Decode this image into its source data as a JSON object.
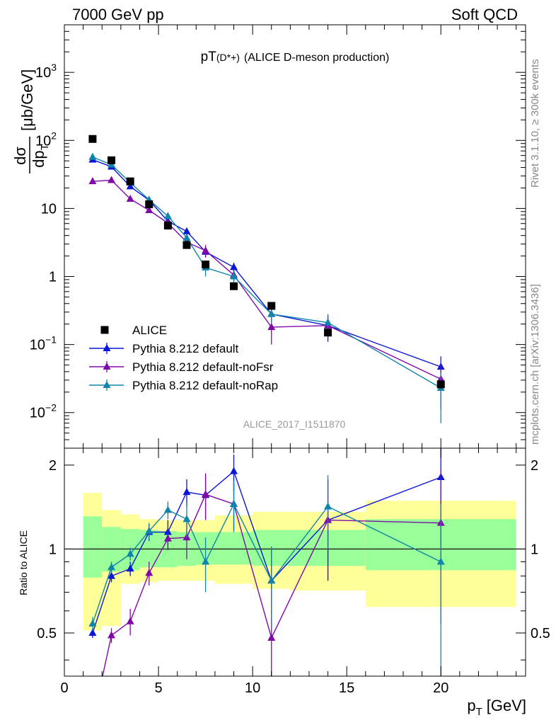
{
  "header": {
    "energy_label": "7000 GeV pp",
    "process_label": "Soft QCD"
  },
  "side_labels": {
    "rivet": "Rivet 3.1.10, ≥ 300k events",
    "source": "mcplots.cern.ch [arXiv:1306.3436]"
  },
  "chart_data": [
    {
      "type": "scatter",
      "panel": "main",
      "title_main": "pT",
      "title_sub": "(D*+)",
      "title_rest": "(ALICE D-meson production)",
      "ylabel": "dσ/dp_T [μb/GeV]",
      "ylabel_parts": {
        "num": "dσ",
        "den": "dp",
        "den_sub": "T",
        "unit": "[μb/GeV]"
      },
      "xlim": [
        0,
        24.5
      ],
      "ylim": [
        0.003,
        5000
      ],
      "yscale": "log",
      "yticks": [
        {
          "value": 1000,
          "label": "10",
          "exp": "3"
        },
        {
          "value": 100,
          "label": "10",
          "exp": "2"
        },
        {
          "value": 10,
          "label": "10",
          "exp": ""
        },
        {
          "value": 1,
          "label": "1",
          "exp": ""
        },
        {
          "value": 0.1,
          "label": "10",
          "exp": "−1"
        },
        {
          "value": 0.01,
          "label": "10",
          "exp": "−2"
        }
      ],
      "watermark": "ALICE_2017_I1511870",
      "legend_position": "bottom-left",
      "data_points": {
        "name": "ALICE",
        "color": "#000000",
        "marker": "square",
        "x": [
          1.5,
          2.5,
          3.5,
          4.5,
          5.5,
          6.5,
          7.5,
          9,
          11,
          14,
          20
        ],
        "y": [
          105,
          51,
          25,
          11.5,
          5.6,
          2.9,
          1.5,
          0.72,
          0.37,
          0.15,
          0.026
        ]
      },
      "series": [
        {
          "name": "Pythia 8.212 default",
          "color": "#0a16d6",
          "marker": "triangle",
          "x": [
            1.5,
            2.5,
            3.5,
            4.5,
            5.5,
            6.5,
            7.5,
            9,
            11,
            14,
            20
          ],
          "y": [
            52,
            41,
            21,
            13.2,
            6.5,
            4.6,
            2.3,
            1.37,
            0.28,
            0.19,
            0.047
          ],
          "yerr": [
            2,
            2,
            1.5,
            1,
            0.7,
            0.5,
            0.4,
            0.22,
            0.07,
            0.08,
            0.02
          ]
        },
        {
          "name": "Pythia 8.212 default-noFsr",
          "color": "#7f0aa8",
          "marker": "triangle",
          "x": [
            1.5,
            2.5,
            3.5,
            4.5,
            5.5,
            6.5,
            7.5,
            9,
            11,
            14,
            20
          ],
          "y": [
            25,
            26,
            13.8,
            9.4,
            6.1,
            3.2,
            2.4,
            1.05,
            0.18,
            0.19,
            0.031
          ],
          "yerr": [
            1.5,
            1.5,
            1,
            0.8,
            0.6,
            0.5,
            0.5,
            0.2,
            0.08,
            0.07,
            0.02
          ]
        },
        {
          "name": "Pythia 8.212 default-noRap",
          "color": "#1185a9",
          "marker": "triangle",
          "x": [
            1.5,
            2.5,
            3.5,
            4.5,
            5.5,
            6.5,
            7.5,
            9,
            11,
            14,
            20
          ],
          "y": [
            57,
            44,
            24,
            13.4,
            7.7,
            3.7,
            1.35,
            1.0,
            0.28,
            0.21,
            0.023
          ],
          "yerr": [
            2,
            2,
            1.5,
            1,
            0.8,
            0.5,
            0.35,
            0.2,
            0.08,
            0.07,
            0.016
          ]
        }
      ]
    },
    {
      "type": "line",
      "panel": "ratio",
      "ylabel": "Ratio to ALICE",
      "xlabel_main": "p",
      "xlabel_sub": "T",
      "xlabel_unit": "[GeV]",
      "xlim": [
        0,
        24.5
      ],
      "ylim": [
        0.35,
        2.3
      ],
      "yscale": "log",
      "xticks": [
        0,
        5,
        10,
        15,
        20
      ],
      "yticks": [
        0.5,
        1,
        2
      ],
      "reference_line": 1,
      "bands": {
        "bin_edges": [
          1,
          2,
          3,
          4,
          5,
          6,
          7,
          8,
          10,
          12,
          16,
          24
        ],
        "inner_color": "#99ff99",
        "outer_color": "#ffff99",
        "inner": [
          [
            0.79,
            1.31
          ],
          [
            0.83,
            1.2
          ],
          [
            0.84,
            1.18
          ],
          [
            0.86,
            1.17
          ],
          [
            0.86,
            1.16
          ],
          [
            0.87,
            1.15
          ],
          [
            0.88,
            1.15
          ],
          [
            0.88,
            1.15
          ],
          [
            0.87,
            1.17
          ],
          [
            0.87,
            1.17
          ],
          [
            0.84,
            1.28
          ]
        ],
        "outer": [
          [
            0.51,
            1.59
          ],
          [
            0.53,
            1.38
          ],
          [
            0.75,
            1.33
          ],
          [
            0.76,
            1.28
          ],
          [
            0.77,
            1.27
          ],
          [
            0.77,
            1.27
          ],
          [
            0.77,
            1.27
          ],
          [
            0.75,
            1.32
          ],
          [
            0.72,
            1.36
          ],
          [
            0.71,
            1.36
          ],
          [
            0.62,
            1.49
          ]
        ]
      },
      "series": [
        {
          "name": "Pythia 8.212 default",
          "color": "#0a16d6",
          "x": [
            1.5,
            2.5,
            3.5,
            4.5,
            5.5,
            6.5,
            7.5,
            9,
            11,
            14,
            20
          ],
          "y": [
            0.5,
            0.8,
            0.85,
            1.15,
            1.15,
            1.6,
            1.56,
            1.9,
            0.77,
            1.27,
            1.81
          ],
          "yerr": [
            0.02,
            0.04,
            0.05,
            0.08,
            0.12,
            0.18,
            0.28,
            0.28,
            0.25,
            0.5,
            0.75
          ]
        },
        {
          "name": "Pythia 8.212 default-noFsr",
          "color": "#7f0aa8",
          "x": [
            1.5,
            2.5,
            3.5,
            4.5,
            5.5,
            6.5,
            7.5,
            9,
            11,
            14,
            20
          ],
          "y": [
            0.24,
            0.49,
            0.55,
            0.82,
            1.09,
            1.1,
            1.57,
            1.45,
            0.48,
            1.27,
            1.24
          ],
          "yerr": [
            0.02,
            0.03,
            0.06,
            0.08,
            0.1,
            0.18,
            0.3,
            0.28,
            0.2,
            0.5,
            0.7
          ]
        },
        {
          "name": "Pythia 8.212 default-noRap",
          "color": "#1185a9",
          "x": [
            1.5,
            2.5,
            3.5,
            4.5,
            5.5,
            6.5,
            7.5,
            9,
            11,
            14,
            20
          ],
          "y": [
            0.54,
            0.86,
            0.96,
            1.16,
            1.38,
            1.28,
            0.9,
            1.45,
            0.77,
            1.42,
            0.9
          ],
          "yerr": [
            0.03,
            0.04,
            0.05,
            0.08,
            0.1,
            0.18,
            0.2,
            0.3,
            0.25,
            0.42,
            0.55
          ]
        }
      ]
    }
  ]
}
